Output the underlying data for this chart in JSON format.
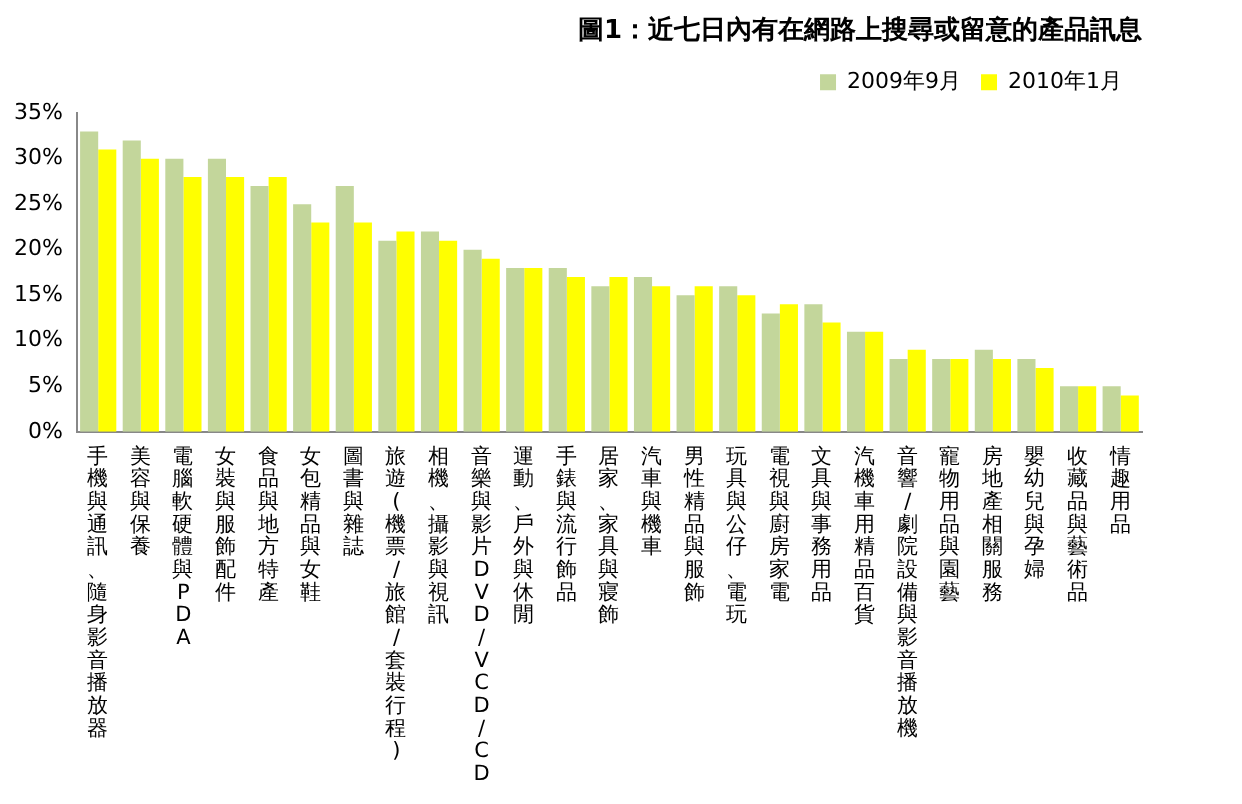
{
  "chart_data": {
    "type": "bar",
    "title": "圖1：近七日內有在網路上搜尋或留意的產品訊息",
    "categories": [
      "手機與通訊、隨身影音播放器",
      "美容與保養",
      "電腦軟硬體與PDA",
      "女裝與服飾配件",
      "食品與地方特產",
      "女包精品與女鞋",
      "圖書與雜誌",
      "旅遊(機票/旅館/套裝行程)",
      "相機、攝影與視訊",
      "音樂與影片DVD/VCD/CD",
      "運動、戶外與休閒",
      "手錶與流行飾品",
      "居家、家具與寢飾",
      "汽車與機車",
      "男性精品與服飾",
      "玩具與公仔、電玩",
      "電視與廚房家電",
      "文具與事務用品",
      "汽機車用精品百貨",
      "音響/劇院設備與影音播放機",
      "寵物用品與園藝",
      "房地產相關服務",
      "嬰幼兒與孕婦",
      "收藏品與藝術品",
      "情趣用品"
    ],
    "series": [
      {
        "name": "2009年9月",
        "color": "#c3d69b",
        "values": [
          33,
          32,
          30,
          30,
          27,
          25,
          27,
          21,
          22,
          20,
          18,
          18,
          16,
          17,
          15,
          16,
          13,
          14,
          11,
          8,
          8,
          9,
          8,
          5,
          5
        ]
      },
      {
        "name": "2010年1月",
        "color": "#ffff00",
        "values": [
          31,
          30,
          28,
          28,
          28,
          23,
          23,
          22,
          21,
          19,
          18,
          17,
          17,
          16,
          16,
          15,
          14,
          12,
          11,
          9,
          8,
          8,
          7,
          5,
          4
        ]
      }
    ],
    "ylim": [
      0,
      35
    ],
    "yticks": [
      {
        "value": 0,
        "label": "0%"
      },
      {
        "value": 5,
        "label": "5%"
      },
      {
        "value": 10,
        "label": "10%"
      },
      {
        "value": 15,
        "label": "15%"
      },
      {
        "value": 20,
        "label": "20%"
      },
      {
        "value": 25,
        "label": "25%"
      },
      {
        "value": 30,
        "label": "30%"
      },
      {
        "value": 35,
        "label": "35%"
      }
    ],
    "grid": false,
    "legend": "top right"
  }
}
